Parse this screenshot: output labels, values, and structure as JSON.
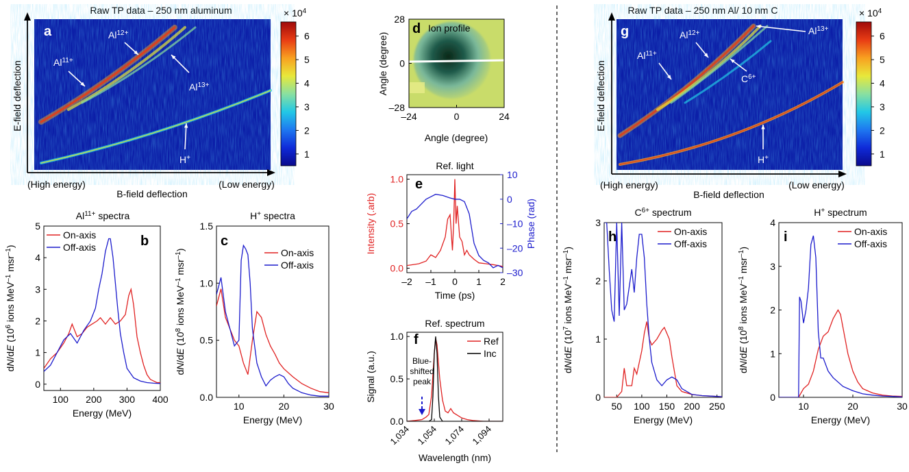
{
  "colorbar": {
    "multiplier": "× 10",
    "exponent": "4",
    "ticks": [
      {
        "v": 1,
        "label": "1"
      },
      {
        "v": 2,
        "label": "2"
      },
      {
        "v": 3,
        "label": "3"
      },
      {
        "v": 4,
        "label": "4"
      },
      {
        "v": 5,
        "label": "5"
      },
      {
        "v": 6,
        "label": "6"
      }
    ],
    "range": [
      0.5,
      6.6
    ],
    "stops": [
      "#0a0a8c",
      "#0f2ad8",
      "#1e78f0",
      "#22c8e6",
      "#8ae0a0",
      "#e8e83a",
      "#f8a020",
      "#e83c14",
      "#a00a0a"
    ]
  },
  "panels": {
    "a": {
      "letter": "a",
      "title": "Raw TP data – 250 nm aluminum",
      "ylabel": "E-field deflection",
      "xlabel": "B-field deflection",
      "xleft": "(High energy)",
      "xright": "(Low energy)",
      "labels": [
        {
          "ion": "Al",
          "sup": "11+"
        },
        {
          "ion": "Al",
          "sup": "12+"
        },
        {
          "ion": "Al",
          "sup": "13+"
        },
        {
          "ion": "H",
          "sup": "+"
        }
      ]
    },
    "g": {
      "letter": "g",
      "title": "Raw TP data – 250 nm Al/ 10 nm C",
      "ylabel": "E-field deflection",
      "xlabel": "B-field deflection",
      "xleft": "(High energy)",
      "xright": "(Low energy)",
      "labels": [
        {
          "ion": "Al",
          "sup": "11+"
        },
        {
          "ion": "Al",
          "sup": "12+"
        },
        {
          "ion": "Al",
          "sup": "13+"
        },
        {
          "ion": "C",
          "sup": "6+"
        },
        {
          "ion": "H",
          "sup": "+"
        }
      ]
    },
    "d": {
      "letter": "d",
      "title": "Ion profile",
      "xlabel": "Angle (degree)",
      "ylabel": "Angle (degree)",
      "xticks": [
        {
          "v": -24,
          "label": "–24"
        },
        {
          "v": 0,
          "label": "0"
        },
        {
          "v": 24,
          "label": "24"
        }
      ],
      "yticks": [
        {
          "v": 28,
          "label": "28"
        },
        {
          "v": 0,
          "label": "0"
        },
        {
          "v": -28,
          "label": "–28"
        }
      ]
    }
  },
  "chart_data": [
    {
      "id": "b",
      "type": "line",
      "letter": "b",
      "title": "Al",
      "title_sup": "11+",
      "title_tail": " spectra",
      "xlabel": "Energy (MeV)",
      "ylabel_parts": [
        "dN/dE (10",
        "6",
        " ions MeV",
        "–1",
        " msr",
        "–1",
        ")"
      ],
      "xlim": [
        50,
        400
      ],
      "ylim": [
        -0.2,
        5
      ],
      "xticks": [
        100,
        200,
        300,
        400
      ],
      "yticks": [
        0,
        1,
        2,
        3,
        4,
        5
      ],
      "legend": "top-left",
      "series": [
        {
          "name": "On-axis",
          "color": "#e02020",
          "x": [
            50,
            70,
            90,
            110,
            125,
            135,
            150,
            165,
            180,
            195,
            210,
            220,
            235,
            250,
            265,
            280,
            295,
            305,
            312,
            320,
            330,
            340,
            350,
            360,
            370,
            380,
            390,
            400
          ],
          "y": [
            0.5,
            0.8,
            1.0,
            1.3,
            1.6,
            1.9,
            1.5,
            1.6,
            1.8,
            1.9,
            2.0,
            2.1,
            1.9,
            2.1,
            1.9,
            2.0,
            2.2,
            2.8,
            3.0,
            2.5,
            1.5,
            1.0,
            0.6,
            0.3,
            0.15,
            0.1,
            0.05,
            0.05
          ]
        },
        {
          "name": "Off-axis",
          "color": "#1a1acc",
          "x": [
            50,
            70,
            90,
            110,
            130,
            150,
            170,
            190,
            205,
            215,
            225,
            235,
            245,
            250,
            258,
            265,
            272,
            280,
            290,
            300,
            320,
            340,
            360,
            380,
            400
          ],
          "y": [
            0.4,
            0.6,
            1.0,
            1.4,
            1.6,
            1.3,
            1.7,
            2.0,
            2.4,
            3.0,
            3.5,
            4.2,
            4.6,
            4.6,
            4.0,
            3.2,
            2.4,
            1.6,
            1.0,
            0.5,
            0.2,
            0.1,
            0.05,
            0.03,
            0.02
          ]
        }
      ]
    },
    {
      "id": "c",
      "type": "line",
      "letter": "c",
      "title": "H",
      "title_sup": "+",
      "title_tail": " spectra",
      "xlabel": "Energy (MeV)",
      "ylabel_parts": [
        "dN/dE (10",
        "8",
        " ions MeV",
        "–1",
        " msr",
        "–1",
        ")"
      ],
      "xlim": [
        5,
        30
      ],
      "ylim": [
        0,
        1.5
      ],
      "xticks": [
        10,
        20,
        30
      ],
      "yticks": [
        0,
        0.5,
        1,
        1.5
      ],
      "ytick_labels": [
        "0.0",
        "0.5",
        "1.0",
        "1.5"
      ],
      "legend": "top-right",
      "series": [
        {
          "name": "On-axis",
          "color": "#e02020",
          "x": [
            5,
            6,
            7,
            8,
            9,
            10,
            11,
            12,
            13,
            14,
            15,
            16,
            17,
            18,
            19,
            20,
            22,
            24,
            26,
            28,
            30
          ],
          "y": [
            0.8,
            0.95,
            0.7,
            0.6,
            0.5,
            0.45,
            0.3,
            0.2,
            0.5,
            0.75,
            0.7,
            0.55,
            0.45,
            0.38,
            0.3,
            0.25,
            0.18,
            0.12,
            0.08,
            0.05,
            0.04
          ]
        },
        {
          "name": "Off-axis",
          "color": "#1a1acc",
          "x": [
            5,
            6,
            7,
            8,
            9,
            10,
            10.5,
            11,
            11.5,
            12,
            12.5,
            13,
            14,
            15,
            16,
            17,
            18,
            19,
            20,
            21,
            22,
            24,
            26,
            28,
            30
          ],
          "y": [
            0.9,
            1.05,
            0.75,
            0.6,
            0.45,
            0.5,
            1.2,
            1.33,
            1.3,
            1.25,
            1.0,
            0.6,
            0.3,
            0.18,
            0.1,
            0.15,
            0.18,
            0.2,
            0.18,
            0.12,
            0.08,
            0.04,
            0.02,
            0.01,
            0.01
          ]
        }
      ]
    },
    {
      "id": "e",
      "type": "line",
      "letter": "e",
      "title": "Ref. light",
      "xlabel": "Time (ps)",
      "ylabel": "Intensity (.arb)",
      "ylabel2": "Phase (rad)",
      "xlim": [
        -2,
        2
      ],
      "ylim": [
        -0.05,
        1.05
      ],
      "y2lim": [
        -30,
        10
      ],
      "xticks": [
        -2,
        -1,
        0,
        1,
        2
      ],
      "xtick_labels": [
        "–2",
        "–1",
        "0",
        "1",
        "2"
      ],
      "yticks": [
        0,
        0.5,
        1
      ],
      "ytick_labels": [
        "0.0",
        "0.5",
        "1.0"
      ],
      "y2ticks": [
        -30,
        -20,
        -10,
        0,
        10
      ],
      "y2tick_labels": [
        "–30",
        "–20",
        "–10",
        "0",
        "10"
      ],
      "series": [
        {
          "name": "Intensity",
          "axis": "left",
          "color": "#e02020",
          "x": [
            -2,
            -1.5,
            -1.2,
            -1,
            -0.8,
            -0.6,
            -0.4,
            -0.3,
            -0.2,
            -0.1,
            -0.05,
            0,
            0.05,
            0.1,
            0.2,
            0.3,
            0.4,
            0.5,
            0.6,
            0.8,
            1,
            1.3,
            1.6,
            2
          ],
          "y": [
            0.03,
            0.05,
            0.08,
            0.15,
            0.12,
            0.2,
            0.35,
            0.55,
            0.6,
            0.2,
            0.5,
            1.0,
            0.5,
            0.7,
            0.35,
            0.3,
            0.15,
            0.2,
            0.15,
            0.1,
            0.06,
            0.05,
            0.04,
            0.02
          ]
        },
        {
          "name": "Phase",
          "axis": "right",
          "color": "#1a1acc",
          "x": [
            -2,
            -1.8,
            -1.6,
            -1.4,
            -1.2,
            -1,
            -0.8,
            -0.5,
            -0.2,
            0,
            0.2,
            0.4,
            0.6,
            0.8,
            1,
            1.2,
            1.4,
            1.6,
            1.8,
            2
          ],
          "y": [
            -8,
            -5,
            -4,
            -2,
            0,
            1,
            2,
            1.5,
            0.5,
            0,
            0,
            -1,
            -6,
            -18,
            -23,
            -25,
            -26,
            -28,
            -27,
            -28
          ]
        }
      ]
    },
    {
      "id": "f",
      "type": "line",
      "letter": "f",
      "title": "Ref. spectrum",
      "xlabel": "Wavelength (nm)",
      "ylabel": "Signal (a.u.)",
      "xlim": [
        1034,
        1104
      ],
      "ylim": [
        0,
        1.05
      ],
      "xticks": [
        1034,
        1054,
        1074,
        1094
      ],
      "xtick_labels": [
        "1,034",
        "1,054",
        "1,074",
        "1,094"
      ],
      "yticks": [
        0,
        0.5,
        1
      ],
      "ytick_labels": [
        "0.0",
        "0.5",
        "1.0"
      ],
      "annotation": "Blue-shifted peak",
      "annotation_lines": [
        "Blue-",
        "shifted",
        "peak"
      ],
      "legend": "top-right",
      "series": [
        {
          "name": "Ref",
          "color": "#e02020",
          "x": [
            1034,
            1040,
            1045,
            1048,
            1050,
            1052,
            1054,
            1055,
            1056,
            1058,
            1060,
            1062,
            1064,
            1066,
            1068,
            1070,
            1074,
            1078,
            1082,
            1090,
            1104
          ],
          "y": [
            0,
            0.01,
            0.02,
            0.05,
            0.08,
            0.3,
            0.8,
            0.98,
            0.9,
            0.5,
            0.25,
            0.12,
            0.1,
            0.15,
            0.1,
            0.08,
            0.04,
            0.02,
            0.01,
            0,
            0
          ]
        },
        {
          "name": "Inc",
          "color": "#000000",
          "x": [
            1034,
            1050,
            1052,
            1053,
            1054,
            1055,
            1056,
            1057,
            1058,
            1060,
            1104
          ],
          "y": [
            0,
            0,
            0.02,
            0.3,
            0.8,
            1.0,
            0.8,
            0.3,
            0.05,
            0,
            0
          ]
        }
      ]
    },
    {
      "id": "h",
      "type": "line",
      "letter": "h",
      "title": "C",
      "title_sup": "6+",
      "title_tail": " spectrum",
      "xlabel": "Energy (MeV)",
      "ylabel_parts": [
        "dN/dE (10",
        "7",
        " ions MeV",
        "–1",
        " msr",
        "–1",
        ")"
      ],
      "xlim": [
        25,
        260
      ],
      "ylim": [
        0,
        3
      ],
      "xticks": [
        50,
        100,
        150,
        200,
        250
      ],
      "yticks": [
        0,
        1,
        2,
        3
      ],
      "legend": "top-right",
      "series": [
        {
          "name": "On-axis",
          "color": "#e02020",
          "x": [
            25,
            50,
            60,
            65,
            70,
            80,
            85,
            90,
            100,
            105,
            110,
            115,
            120,
            130,
            140,
            145,
            150,
            155,
            160,
            170,
            180,
            200,
            220,
            240,
            260
          ],
          "y": [
            0,
            0,
            0.1,
            0.5,
            0.2,
            0.2,
            0.5,
            0.4,
            0.8,
            1.1,
            1.3,
            1.0,
            0.9,
            1.0,
            1.15,
            1.2,
            1.1,
            1.0,
            0.7,
            0.2,
            0.1,
            0.05,
            0.03,
            0.02,
            0.01
          ]
        },
        {
          "name": "Off-axis",
          "color": "#1a1acc",
          "x": [
            25,
            30,
            35,
            40,
            45,
            50,
            55,
            60,
            65,
            70,
            75,
            80,
            85,
            90,
            95,
            100,
            105,
            110,
            115,
            120,
            130,
            140,
            150,
            160,
            170,
            180,
            200,
            220,
            240,
            260
          ],
          "y": [
            3.0,
            3.0,
            2.2,
            1.5,
            1.3,
            3.0,
            1.4,
            3.0,
            1.5,
            1.6,
            1.9,
            2.2,
            1.8,
            2.4,
            2.8,
            2.8,
            2.4,
            1.6,
            1.0,
            0.6,
            0.3,
            0.2,
            0.3,
            0.35,
            0.3,
            0.15,
            0.05,
            0.03,
            0.02,
            0.01
          ]
        }
      ]
    },
    {
      "id": "i",
      "type": "line",
      "letter": "i",
      "title": "H",
      "title_sup": "+",
      "title_tail": " spectrum",
      "xlabel": "Energy (MeV)",
      "ylabel_parts": [
        "dN/dE (10",
        "8",
        " ions MeV",
        "–1",
        " msr",
        "–1",
        ")"
      ],
      "xlim": [
        5,
        30
      ],
      "ylim": [
        0,
        4
      ],
      "xticks": [
        10,
        20,
        30
      ],
      "yticks": [
        0,
        1,
        2,
        3,
        4
      ],
      "legend": "top-right",
      "series": [
        {
          "name": "On-axis",
          "color": "#e02020",
          "x": [
            5,
            9,
            10,
            11,
            12,
            13,
            14,
            15,
            16,
            17,
            17.5,
            18,
            19,
            20,
            21,
            22,
            24,
            26,
            28,
            30
          ],
          "y": [
            0,
            0,
            0.2,
            0.3,
            0.6,
            1.1,
            1.4,
            1.5,
            1.8,
            2.0,
            1.9,
            1.6,
            1.0,
            0.6,
            0.35,
            0.2,
            0.1,
            0.05,
            0.03,
            0.02
          ]
        },
        {
          "name": "Off-axis",
          "color": "#1a1acc",
          "x": [
            5,
            9,
            9.2,
            9.5,
            10,
            10.5,
            11,
            11.5,
            12,
            12.5,
            13,
            13.5,
            14,
            15,
            16,
            18,
            20,
            22,
            24,
            26,
            28,
            30
          ],
          "y": [
            0,
            0,
            2.3,
            2.2,
            1.7,
            2.0,
            2.5,
            3.5,
            3.7,
            3.2,
            1.5,
            0.9,
            0.9,
            0.6,
            0.45,
            0.25,
            0.15,
            0.08,
            0.05,
            0.03,
            0.02,
            0.01
          ]
        }
      ]
    }
  ]
}
